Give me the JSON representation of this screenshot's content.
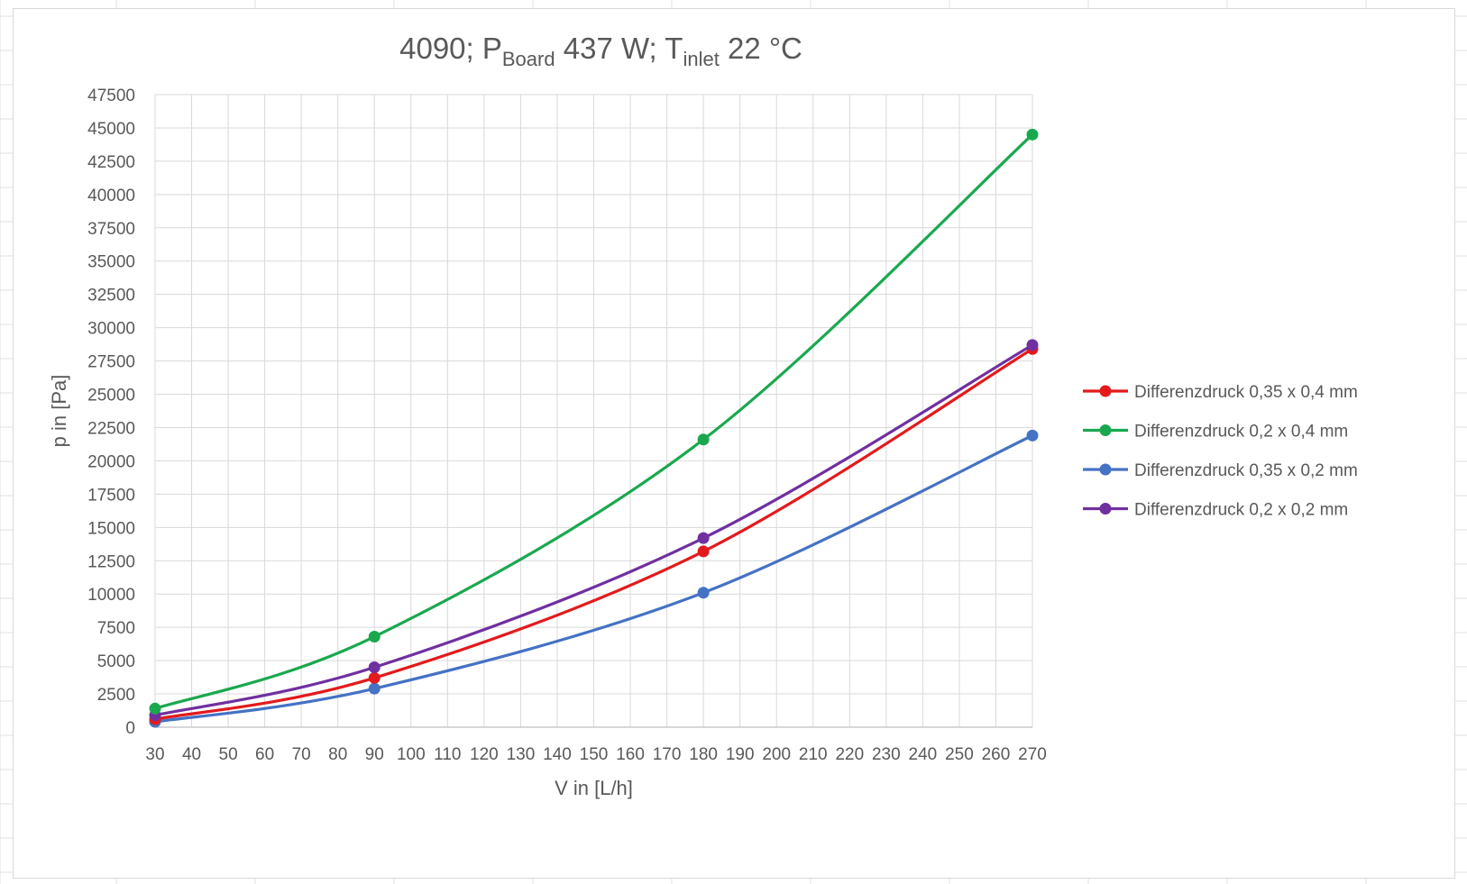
{
  "chart_data": {
    "type": "line",
    "title": {
      "parts": [
        {
          "text": "4090; P",
          "sub": false
        },
        {
          "text": "Board",
          "sub": true
        },
        {
          "text": " 437 W; T",
          "sub": false
        },
        {
          "text": "inlet",
          "sub": true
        },
        {
          "text": " 22 °C",
          "sub": false
        }
      ]
    },
    "xlabel": "V in [L/h]",
    "ylabel": "p in [Pa]",
    "xlim": [
      30,
      270
    ],
    "ylim": [
      0,
      47500
    ],
    "x_ticks": [
      30,
      40,
      50,
      60,
      70,
      80,
      90,
      100,
      110,
      120,
      130,
      140,
      150,
      160,
      170,
      180,
      190,
      200,
      210,
      220,
      230,
      240,
      250,
      260,
      270
    ],
    "y_ticks": [
      0,
      2500,
      5000,
      7500,
      10000,
      12500,
      15000,
      17500,
      20000,
      22500,
      25000,
      27500,
      30000,
      32500,
      35000,
      37500,
      40000,
      42500,
      45000,
      47500
    ],
    "grid": true,
    "smooth": true,
    "legend_position": "right",
    "series": [
      {
        "name": "Differenzdruck 0,35 x 0,4 mm",
        "color": "#e31a1c",
        "x": [
          30,
          90,
          180,
          270
        ],
        "y": [
          600,
          3700,
          13200,
          28400
        ]
      },
      {
        "name": "Differenzdruck 0,2 x 0,4 mm",
        "color": "#1aa84f",
        "x": [
          30,
          90,
          180,
          270
        ],
        "y": [
          1400,
          6800,
          21600,
          44500
        ]
      },
      {
        "name": "Differenzdruck 0,35 x 0,2 mm",
        "color": "#4472c4",
        "x": [
          30,
          90,
          180,
          270
        ],
        "y": [
          400,
          2900,
          10100,
          21900
        ]
      },
      {
        "name": "Differenzdruck 0,2 x 0,2 mm",
        "color": "#7030a0",
        "x": [
          30,
          90,
          180,
          270
        ],
        "y": [
          900,
          4500,
          14200,
          28700
        ]
      }
    ]
  }
}
